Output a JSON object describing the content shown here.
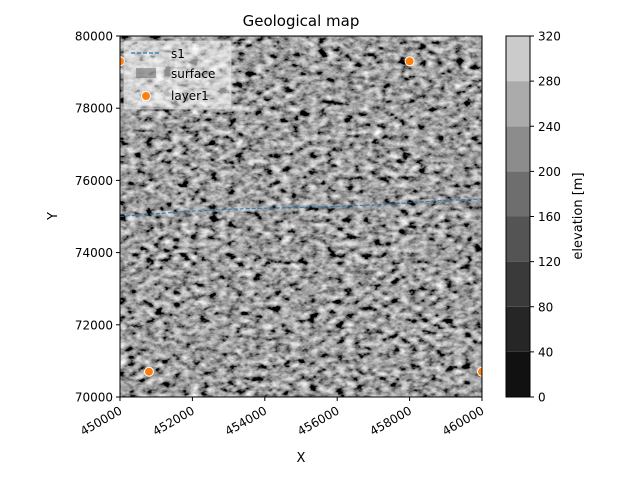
{
  "chart_data": {
    "type": "heatmap",
    "title": "Geological map",
    "xlabel": "X",
    "ylabel": "Y",
    "xlim": [
      450000,
      460000
    ],
    "ylim": [
      70000,
      80000
    ],
    "xticks": [
      "450000",
      "452000",
      "454000",
      "456000",
      "458000",
      "460000"
    ],
    "yticks": [
      "70000",
      "72000",
      "74000",
      "76000",
      "78000",
      "80000"
    ],
    "tick_rotation_x": 30,
    "surface": {
      "name": "surface",
      "description": "hillshaded elevation raster in grayscale",
      "range": [
        0,
        320
      ]
    },
    "series": [
      {
        "name": "s1",
        "type": "line",
        "color": "#1f77b4",
        "x": [
          450000,
          451000,
          452000,
          453000,
          454000,
          455000,
          456000,
          457000,
          458000,
          459000,
          460000
        ],
        "y": [
          75000,
          75080,
          75150,
          75200,
          75230,
          75250,
          75280,
          75320,
          75380,
          75450,
          75480
        ]
      },
      {
        "name": "layer1",
        "type": "scatter",
        "color": "#ff7f0e",
        "x": [
          450000,
          458000,
          450800,
          460000
        ],
        "y": [
          79300,
          79300,
          70700,
          70700
        ]
      }
    ],
    "legend": {
      "position": "top-left",
      "entries": [
        "s1",
        "surface",
        "layer1"
      ]
    },
    "colorbar": {
      "label": "elevation [m]",
      "ticks": [
        "0",
        "40",
        "80",
        "120",
        "160",
        "200",
        "240",
        "280",
        "320"
      ],
      "levels": [
        0,
        40,
        80,
        120,
        160,
        200,
        240,
        280,
        320
      ],
      "colors": [
        "#111111",
        "#262626",
        "#3a3a3a",
        "#545454",
        "#6e6e6e",
        "#8c8c8c",
        "#ababab",
        "#cbcbcb",
        "#eeeeee"
      ]
    }
  }
}
